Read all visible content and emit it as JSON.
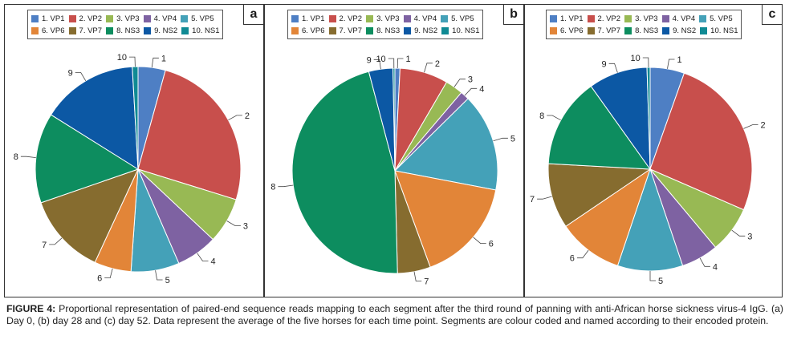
{
  "colors": [
    "#4e7fc4",
    "#c84f4c",
    "#98b954",
    "#7e62a2",
    "#44a1b8",
    "#e28538",
    "#866c2f",
    "#0d8d5f",
    "#0c58a4",
    "#108a94"
  ],
  "chart_data": [
    {
      "type": "pie",
      "panel": "a",
      "legend": [
        "1. VP1",
        "2. VP2",
        "3. VP3",
        "4. VP4",
        "5. VP5",
        "6. VP6",
        "7. VP7",
        "8. NS3",
        "9. NS2",
        "10. NS1"
      ],
      "labels": [
        "1",
        "2",
        "3",
        "4",
        "5",
        "6",
        "7",
        "8",
        "9",
        "10"
      ],
      "values": [
        4.3,
        25.5,
        7.2,
        6.5,
        7.6,
        5.8,
        12.8,
        14.2,
        15.2,
        0.9
      ]
    },
    {
      "type": "pie",
      "panel": "b",
      "legend": [
        "1. VP1",
        "2. VP2",
        "3. VP3",
        "4. VP4",
        "5. VP5",
        "6. VP6",
        "7. VP7",
        "8. NS3",
        "9. NS2",
        "10. NS1"
      ],
      "labels": [
        "1",
        "2",
        "3",
        "4",
        "5",
        "6",
        "7",
        "8",
        "9",
        "10"
      ],
      "values": [
        0.8,
        7.6,
        2.8,
        1.4,
        15.4,
        16.4,
        5.2,
        46.3,
        3.8,
        0.3
      ]
    },
    {
      "type": "pie",
      "panel": "c",
      "legend": [
        "1. VP1",
        "2. VP2",
        "3. VP3",
        "4. VP4",
        "5. VP5",
        "6. VP6",
        "7. VP7",
        "8. NS3",
        "9. NS2",
        "10. NS1"
      ],
      "labels": [
        "1",
        "2",
        "3",
        "4",
        "5",
        "6",
        "7",
        "8",
        "9",
        "10"
      ],
      "values": [
        5.5,
        26.5,
        7.5,
        6.0,
        10.5,
        10.5,
        10.5,
        14.5,
        9.5,
        0.5
      ]
    }
  ],
  "caption": {
    "label": "FIGURE 4:",
    "text": " Proportional representation of paired-end sequence reads mapping to each segment after the third round of panning with anti-African horse sickness virus-4 IgG. (a) Day 0, (b) day 28 and (c) day 52. Data represent the average of the five horses for each time point. Segments are colour coded and named according to their encoded protein."
  }
}
